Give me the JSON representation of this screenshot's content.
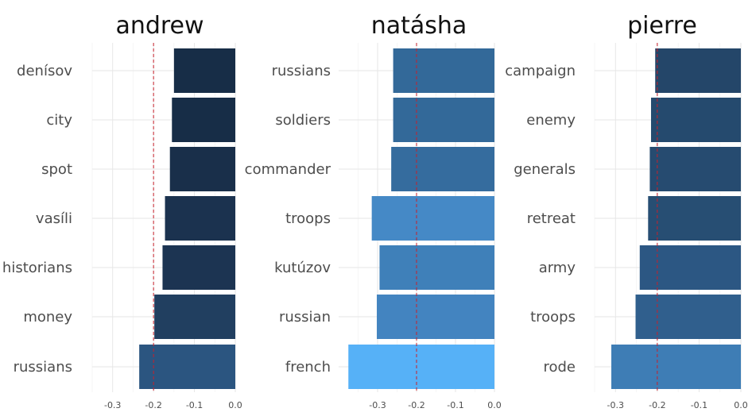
{
  "chart_data": [
    {
      "type": "bar",
      "orientation": "horizontal",
      "title": "andrew",
      "categories": [
        "denísov",
        "city",
        "spot",
        "vasíli",
        "historians",
        "money",
        "russians"
      ],
      "values": [
        -0.15,
        -0.155,
        -0.16,
        -0.172,
        -0.178,
        -0.198,
        -0.235
      ],
      "bar_colors": [
        "#172d47",
        "#172d47",
        "#192f4a",
        "#1b324f",
        "#1c3452",
        "#213f60",
        "#2b5580"
      ],
      "xlim": [
        -0.35,
        0.0
      ],
      "xticks": [
        -0.3,
        -0.2,
        -0.1,
        0.0
      ],
      "xtick_labels": [
        "-0.3",
        "-0.2",
        "-0.1",
        "0.0"
      ],
      "reference_line": -0.2,
      "grid": true
    },
    {
      "type": "bar",
      "orientation": "horizontal",
      "title": "natásha",
      "categories": [
        "russians",
        "soldiers",
        "commander",
        "troops",
        "kutúzov",
        "russian",
        "french"
      ],
      "values": [
        -0.26,
        -0.26,
        -0.265,
        -0.315,
        -0.295,
        -0.302,
        -0.375
      ],
      "bar_colors": [
        "#336999",
        "#336999",
        "#356c9e",
        "#4589c6",
        "#3f80b9",
        "#4384c0",
        "#56b1f7"
      ],
      "xlim": [
        -0.4,
        0.0
      ],
      "xticks": [
        -0.3,
        -0.2,
        -0.1,
        0.0
      ],
      "xtick_labels": [
        "-0.3",
        "-0.2",
        "-0.1",
        "0.0"
      ],
      "reference_line": -0.2,
      "grid": true
    },
    {
      "type": "bar",
      "orientation": "horizontal",
      "title": "pierre",
      "categories": [
        "campaign",
        "enemy",
        "generals",
        "retreat",
        "army",
        "troops",
        "rode"
      ],
      "values": [
        -0.205,
        -0.215,
        -0.218,
        -0.222,
        -0.242,
        -0.252,
        -0.31
      ],
      "bar_colors": [
        "#244669",
        "#254a6e",
        "#264b70",
        "#274e73",
        "#2c5783",
        "#305f8d",
        "#3e7db5"
      ],
      "xlim": [
        -0.35,
        0.0
      ],
      "xticks": [
        -0.3,
        -0.2,
        -0.1,
        0.0
      ],
      "xtick_labels": [
        "-0.3",
        "-0.2",
        "-0.1",
        "0.0"
      ],
      "reference_line": -0.2,
      "grid": true
    }
  ]
}
